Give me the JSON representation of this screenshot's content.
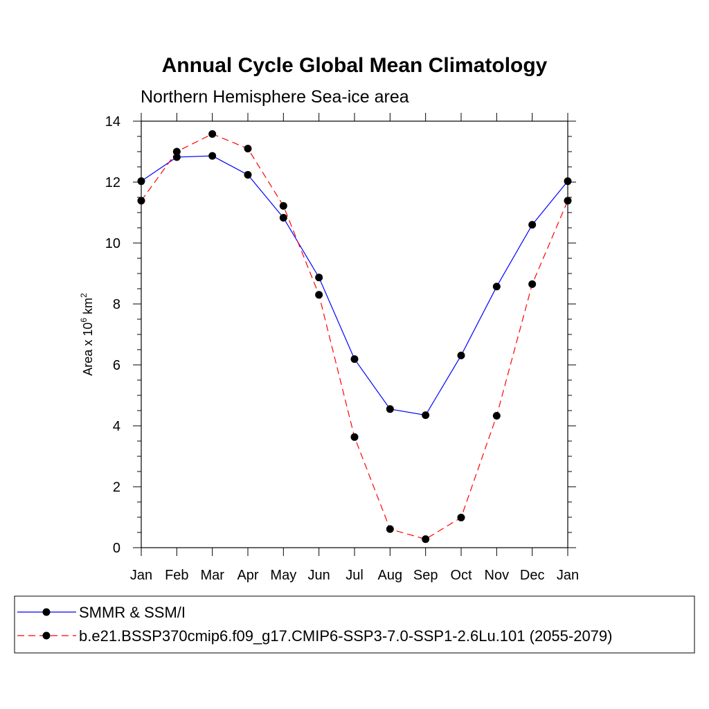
{
  "chart_data": {
    "type": "line",
    "title": "Annual Cycle Global Mean Climatology",
    "subtitle": "Northern Hemisphere Sea-ice area",
    "ylabel": {
      "prefix": "Area x 10",
      "exp1": "6",
      "mid": " km",
      "exp2": "2"
    },
    "xlabel": "",
    "categories": [
      "Jan",
      "Feb",
      "Mar",
      "Apr",
      "May",
      "Jun",
      "Jul",
      "Aug",
      "Sep",
      "Oct",
      "Nov",
      "Dec",
      "Jan"
    ],
    "ylim": [
      0,
      14
    ],
    "yticks": [
      "0",
      "2",
      "4",
      "6",
      "8",
      "10",
      "12",
      "14"
    ],
    "grid": false,
    "legend_position": "bottom",
    "series": [
      {
        "name": "SMMR & SSM/I",
        "color": "#0000ff",
        "dash": "solid",
        "values": [
          12.03,
          12.82,
          12.86,
          12.24,
          10.83,
          8.87,
          6.19,
          4.55,
          4.35,
          6.31,
          8.57,
          10.6,
          12.03
        ]
      },
      {
        "name": "b.e21.BSSP370cmip6.f09_g17.CMIP6-SSP3-7.0-SSP1-2.6Lu.101 (2055-2079)",
        "color": "#ff0000",
        "dash": "dashed",
        "values": [
          11.39,
          13.0,
          13.58,
          13.1,
          11.22,
          8.3,
          3.63,
          0.61,
          0.28,
          0.99,
          4.33,
          8.65,
          11.39
        ]
      }
    ]
  }
}
